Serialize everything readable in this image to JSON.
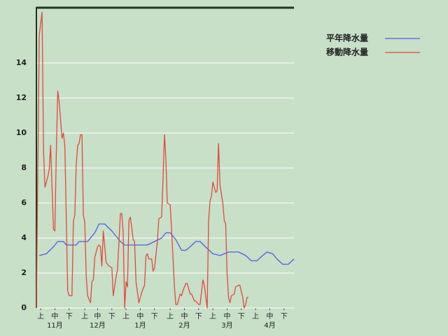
{
  "chart_data": {
    "type": "line",
    "series": [
      {
        "name": "平年降水量",
        "color": "#4d5ee6",
        "x": [
          2,
          7,
          12,
          15,
          19,
          21,
          28,
          30,
          36,
          41,
          44,
          48,
          53,
          59,
          62,
          78,
          83,
          88,
          91,
          94,
          98,
          102,
          105,
          108,
          112,
          115,
          120,
          124,
          129,
          135,
          142,
          147,
          151,
          155,
          159,
          162,
          166,
          169,
          173,
          177,
          181
        ],
        "values": [
          3,
          3.1,
          3.5,
          3.8,
          3.8,
          3.6,
          3.6,
          3.8,
          3.8,
          4.3,
          4.8,
          4.8,
          4.4,
          3.8,
          3.6,
          3.6,
          3.8,
          4,
          4.3,
          4.3,
          3.9,
          3.3,
          3.3,
          3.5,
          3.8,
          3.8,
          3.4,
          3.1,
          3,
          3.2,
          3.2,
          3,
          2.7,
          2.7,
          3,
          3.2,
          3.1,
          2.8,
          2.5,
          2.5,
          2.8
        ]
      },
      {
        "name": "移動降水量",
        "color": "#e04a3c",
        "x": [
          0,
          2,
          4,
          5,
          6,
          8,
          9,
          10,
          12,
          13,
          14,
          15,
          16,
          18,
          19,
          20,
          22,
          23,
          25,
          26,
          27,
          28,
          29,
          30,
          31,
          32,
          33,
          34,
          35,
          36,
          38,
          39,
          40,
          41,
          43,
          44,
          45,
          46,
          47,
          49,
          51,
          53,
          54,
          56,
          57,
          59,
          60,
          61,
          62,
          63,
          64,
          65,
          66,
          68,
          69,
          70,
          72,
          74,
          76,
          77,
          78,
          79,
          81,
          82,
          83,
          85,
          86,
          88,
          89,
          90,
          91,
          92,
          94,
          95,
          97,
          98,
          99,
          101,
          102,
          103,
          105,
          106,
          108,
          109,
          111,
          112,
          114,
          115,
          117,
          118,
          120,
          121,
          122,
          123,
          124,
          126,
          127,
          128,
          129,
          130,
          131,
          132,
          133,
          134,
          135,
          136,
          137,
          139,
          140,
          142,
          143,
          145,
          146,
          147,
          148,
          149
        ],
        "values": [
          0,
          15.6,
          16.9,
          9,
          6.9,
          7.5,
          7.9,
          9.3,
          4.5,
          4.4,
          9,
          12.4,
          11.8,
          9.7,
          10,
          9.2,
          1,
          0.7,
          0.7,
          5,
          5.3,
          8.2,
          9.3,
          9.4,
          9.9,
          9.9,
          5.3,
          4.9,
          1.8,
          0.7,
          0.3,
          1.5,
          1.6,
          2.9,
          3.5,
          3.6,
          3.5,
          2.4,
          4.4,
          2.6,
          2.4,
          2.3,
          0.7,
          1.8,
          2.2,
          5.4,
          5.4,
          4.3,
          0,
          1.5,
          1.2,
          5,
          5.2,
          3.9,
          3.8,
          1.5,
          0.3,
          0.9,
          1.3,
          3,
          3.1,
          2.8,
          2.8,
          2.1,
          2.3,
          3.8,
          5.1,
          5.2,
          7.5,
          9.9,
          8.5,
          6,
          5.9,
          4.5,
          1.2,
          0.2,
          0.2,
          0.8,
          0.7,
          1,
          1.4,
          1.4,
          0.8,
          0.8,
          0.4,
          0.4,
          0.2,
          0.2,
          1.6,
          1.3,
          0,
          5,
          6.1,
          6.4,
          7.2,
          6.6,
          6.7,
          9.4,
          7,
          6.5,
          6,
          5,
          4.8,
          2,
          0.6,
          0.3,
          0.7,
          0.8,
          1.2,
          1.3,
          1.3,
          0.6,
          0,
          0.2,
          0.6,
          0.6
        ]
      }
    ],
    "xlim": [
      0,
      181
    ],
    "xticks": [
      {
        "value": 3,
        "label": "上"
      },
      {
        "value": 13,
        "label": "中"
      },
      {
        "value": 23,
        "label": "下"
      },
      {
        "value": 34,
        "label": "上"
      },
      {
        "value": 43,
        "label": "中"
      },
      {
        "value": 53,
        "label": "下"
      },
      {
        "value": 63,
        "label": "上"
      },
      {
        "value": 73,
        "label": "中"
      },
      {
        "value": 83,
        "label": "下"
      },
      {
        "value": 94,
        "label": "上"
      },
      {
        "value": 104,
        "label": "中"
      },
      {
        "value": 114,
        "label": "下"
      },
      {
        "value": 124,
        "label": "上"
      },
      {
        "value": 134,
        "label": "中"
      },
      {
        "value": 144,
        "label": "下"
      },
      {
        "value": 154,
        "label": "上"
      },
      {
        "value": 164,
        "label": "中"
      },
      {
        "value": 174,
        "label": "下"
      }
    ],
    "xgroups": [
      "11月",
      "12月",
      "1月",
      "2月",
      "3月",
      "4月"
    ],
    "ylim": [
      0,
      17.1
    ],
    "yticks": [
      0,
      2,
      4,
      6,
      8,
      10,
      12,
      14
    ],
    "grid": true
  }
}
